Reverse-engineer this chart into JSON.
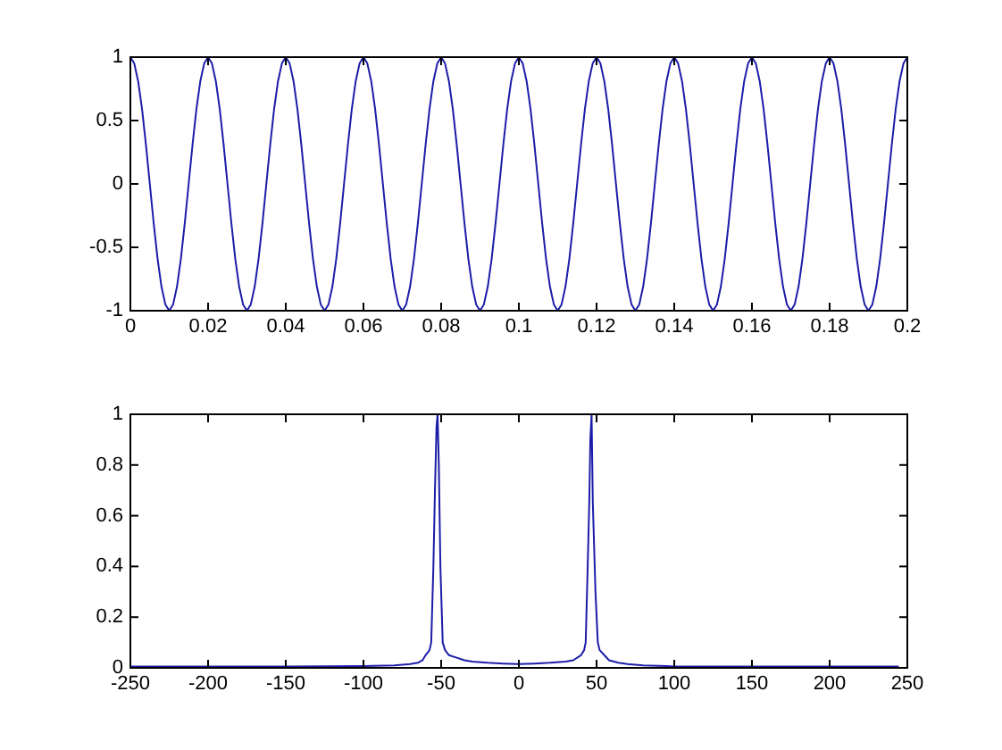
{
  "chart_data": [
    {
      "type": "line",
      "xlim": [
        0,
        0.2
      ],
      "ylim": [
        -1,
        1
      ],
      "xticks": [
        0,
        0.02,
        0.04,
        0.06,
        0.08,
        0.1,
        0.12,
        0.14,
        0.16,
        0.18,
        0.2
      ],
      "yticks": [
        -1,
        -0.5,
        0,
        0.5,
        1
      ],
      "x": [
        0,
        0.001,
        0.002,
        0.003,
        0.004,
        0.005,
        0.006,
        0.007,
        0.008,
        0.009,
        0.01,
        0.011,
        0.012,
        0.013,
        0.014,
        0.015,
        0.016,
        0.017,
        0.018,
        0.019,
        0.02,
        0.021,
        0.022,
        0.023,
        0.024,
        0.025,
        0.026,
        0.027,
        0.028,
        0.029,
        0.03,
        0.031,
        0.032,
        0.033,
        0.034,
        0.035,
        0.036,
        0.037,
        0.038,
        0.039,
        0.04,
        0.041,
        0.042,
        0.043,
        0.044,
        0.045,
        0.046,
        0.047,
        0.048,
        0.049,
        0.05,
        0.051,
        0.052,
        0.053,
        0.054,
        0.055,
        0.056,
        0.057,
        0.058,
        0.059,
        0.06,
        0.061,
        0.062,
        0.063,
        0.064,
        0.065,
        0.066,
        0.067,
        0.068,
        0.069,
        0.07,
        0.071,
        0.072,
        0.073,
        0.074,
        0.075,
        0.076,
        0.077,
        0.078,
        0.079,
        0.08,
        0.081,
        0.082,
        0.083,
        0.084,
        0.085,
        0.086,
        0.087,
        0.088,
        0.089,
        0.09,
        0.091,
        0.092,
        0.093,
        0.094,
        0.095,
        0.096,
        0.097,
        0.098,
        0.099,
        0.1,
        0.101,
        0.102,
        0.103,
        0.104,
        0.105,
        0.106,
        0.107,
        0.108,
        0.109,
        0.11,
        0.111,
        0.112,
        0.113,
        0.114,
        0.115,
        0.116,
        0.117,
        0.118,
        0.119,
        0.12,
        0.121,
        0.122,
        0.123,
        0.124,
        0.125,
        0.126,
        0.127,
        0.128,
        0.129,
        0.13,
        0.131,
        0.132,
        0.133,
        0.134,
        0.135,
        0.136,
        0.137,
        0.138,
        0.139,
        0.14,
        0.141,
        0.142,
        0.143,
        0.144,
        0.145,
        0.146,
        0.147,
        0.148,
        0.149,
        0.15,
        0.151,
        0.152,
        0.153,
        0.154,
        0.155,
        0.156,
        0.157,
        0.158,
        0.159,
        0.16,
        0.161,
        0.162,
        0.163,
        0.164,
        0.165,
        0.166,
        0.167,
        0.168,
        0.169,
        0.17,
        0.171,
        0.172,
        0.173,
        0.174,
        0.175,
        0.176,
        0.177,
        0.178,
        0.179,
        0.18,
        0.181,
        0.182,
        0.183,
        0.184,
        0.185,
        0.186,
        0.187,
        0.188,
        0.189,
        0.19,
        0.191,
        0.192,
        0.193,
        0.194,
        0.195,
        0.196,
        0.197,
        0.198,
        0.199,
        0.2
      ],
      "series": [
        {
          "color": "#1c1ca8",
          "values": [
            1,
            0.95,
            0.81,
            0.59,
            0.31,
            0,
            -0.31,
            -0.59,
            -0.81,
            -0.95,
            -1,
            -0.95,
            -0.81,
            -0.59,
            -0.31,
            0,
            0.31,
            0.59,
            0.81,
            0.95,
            1,
            0.95,
            0.81,
            0.59,
            0.31,
            0,
            -0.31,
            -0.59,
            -0.81,
            -0.95,
            -1,
            -0.95,
            -0.81,
            -0.59,
            -0.31,
            0,
            0.31,
            0.59,
            0.81,
            0.95,
            1,
            0.95,
            0.81,
            0.59,
            0.31,
            0,
            -0.31,
            -0.59,
            -0.81,
            -0.95,
            -1,
            -0.95,
            -0.81,
            -0.59,
            -0.31,
            0,
            0.31,
            0.59,
            0.81,
            0.95,
            1,
            0.95,
            0.81,
            0.59,
            0.31,
            0,
            -0.31,
            -0.59,
            -0.81,
            -0.95,
            -1,
            -0.95,
            -0.81,
            -0.59,
            -0.31,
            0,
            0.31,
            0.59,
            0.81,
            0.95,
            1,
            0.95,
            0.81,
            0.59,
            0.31,
            0,
            -0.31,
            -0.59,
            -0.81,
            -0.95,
            -1,
            -0.95,
            -0.81,
            -0.59,
            -0.31,
            0,
            0.31,
            0.59,
            0.81,
            0.95,
            1,
            0.95,
            0.81,
            0.59,
            0.31,
            0,
            -0.31,
            -0.59,
            -0.81,
            -0.95,
            -1,
            -0.95,
            -0.81,
            -0.59,
            -0.31,
            0,
            0.31,
            0.59,
            0.81,
            0.95,
            1,
            0.95,
            0.81,
            0.59,
            0.31,
            0,
            -0.31,
            -0.59,
            -0.81,
            -0.95,
            -1,
            -0.95,
            -0.81,
            -0.59,
            -0.31,
            0,
            0.31,
            0.59,
            0.81,
            0.95,
            1,
            0.95,
            0.81,
            0.59,
            0.31,
            0,
            -0.31,
            -0.59,
            -0.81,
            -0.95,
            -1,
            -0.95,
            -0.81,
            -0.59,
            -0.31,
            0,
            0.31,
            0.59,
            0.81,
            0.95,
            1,
            0.95,
            0.81,
            0.59,
            0.31,
            0,
            -0.31,
            -0.59,
            -0.81,
            -0.95,
            -1,
            -0.95,
            -0.81,
            -0.59,
            -0.31,
            0,
            0.31,
            0.59,
            0.81,
            0.95,
            1,
            0.95,
            0.81,
            0.59,
            0.31,
            0,
            -0.31,
            -0.59,
            -0.81,
            -0.95,
            -1,
            -0.95,
            -0.81,
            -0.59,
            -0.31,
            0,
            0.31,
            0.59,
            0.81,
            0.95,
            1
          ]
        }
      ]
    },
    {
      "type": "line",
      "xlim": [
        -250,
        250
      ],
      "ylim": [
        0,
        1
      ],
      "xticks": [
        -250,
        -200,
        -150,
        -100,
        -50,
        0,
        50,
        100,
        150,
        200,
        250
      ],
      "yticks": [
        0,
        0.2,
        0.4,
        0.6,
        0.8,
        1
      ],
      "x": [
        -250,
        -200,
        -150,
        -100,
        -80,
        -70,
        -65,
        -62,
        -60,
        -57.5,
        -56.4,
        -55,
        -54,
        -53,
        -52.3,
        -51.5,
        -50.5,
        -49,
        -47.5,
        -45,
        -40,
        -35,
        -30,
        -20,
        -10,
        0,
        10,
        20,
        30,
        35,
        40,
        42,
        43,
        44.3,
        45.3,
        46,
        46.8,
        47.6,
        49.3,
        50.8,
        52,
        55,
        58,
        64,
        70,
        80,
        95,
        100,
        150,
        200,
        244
      ],
      "series": [
        {
          "color": "#1c1ca8",
          "values": [
            0.005,
            0.005,
            0.005,
            0.007,
            0.01,
            0.015,
            0.02,
            0.03,
            0.05,
            0.07,
            0.1,
            0.4,
            0.7,
            0.95,
            1,
            0.8,
            0.4,
            0.1,
            0.07,
            0.05,
            0.04,
            0.03,
            0.025,
            0.02,
            0.017,
            0.015,
            0.017,
            0.02,
            0.025,
            0.03,
            0.05,
            0.07,
            0.1,
            0.4,
            0.65,
            0.9,
            1,
            0.65,
            0.3,
            0.1,
            0.07,
            0.05,
            0.03,
            0.02,
            0.015,
            0.01,
            0.007,
            0.005,
            0.005,
            0.005,
            0.005
          ]
        }
      ]
    }
  ]
}
